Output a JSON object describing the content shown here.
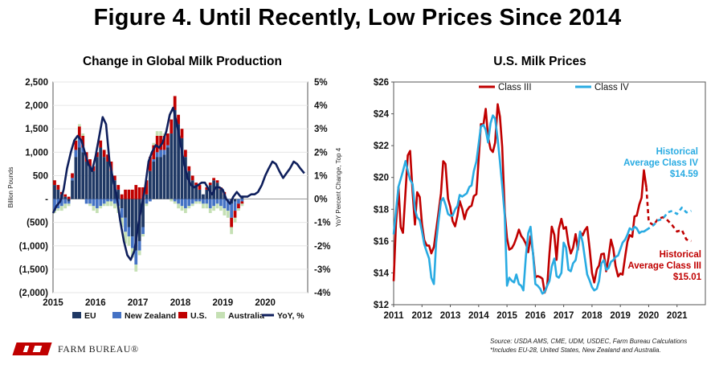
{
  "title": "Figure 4. Until Recently, Low Prices Since 2014",
  "logo_text": "FARM BUREAU®",
  "footer": {
    "source": "Source: USDA AMS, CME, UDM, USDEC, Farm Bureau Calculations",
    "note": "*Includes EU-28, United States, New Zealand and Australia."
  },
  "colors": {
    "eu": "#1f3864",
    "nz": "#4472c4",
    "us": "#c00000",
    "aus": "#c5e0b4",
    "yoy": "#0f1f5c",
    "class3": "#c00000",
    "class4": "#29abe2"
  },
  "chart_data": [
    {
      "type": "bar",
      "title": "Change in Global Milk Production",
      "ylabel": "Billion Pounds",
      "y2label": "YoY Percent Change, Top 4",
      "ylim": [
        -2000,
        2500
      ],
      "y2lim": [
        -4,
        5
      ],
      "x_ticks": [
        "2015",
        "2016",
        "2017",
        "2018",
        "2019",
        "2020"
      ],
      "y_ticks": [
        "2,500",
        "2,000",
        "1,500",
        "1,000",
        "500",
        "-",
        "(500)",
        "(1,000)",
        "(1,500)",
        "(2,000)"
      ],
      "y2_ticks": [
        "5%",
        "4%",
        "3%",
        "2%",
        "1%",
        "0%",
        "-1%",
        "-2%",
        "-3%",
        "-4%"
      ],
      "legend": [
        "EU",
        "New Zealand",
        "U.S.",
        "Australia",
        "YoY, %"
      ],
      "series": [
        {
          "name": "EU",
          "values": [
            300,
            200,
            100,
            50,
            -50,
            400,
            900,
            1100,
            1000,
            800,
            700,
            600,
            900,
            1100,
            900,
            800,
            600,
            400,
            200,
            -200,
            -400,
            -600,
            -800,
            -1100,
            -900,
            -600,
            100,
            600,
            800,
            900,
            900,
            950,
            1100,
            1400,
            1900,
            1600,
            1300,
            900,
            600,
            400,
            300,
            200,
            100,
            200,
            300,
            400,
            350,
            200,
            100,
            0,
            -100,
            -50,
            0,
            50
          ]
        },
        {
          "name": "New Zealand",
          "values": [
            -250,
            -200,
            -150,
            -100,
            -50,
            50,
            150,
            200,
            100,
            -100,
            -100,
            -150,
            -200,
            -150,
            -100,
            -50,
            -50,
            -100,
            -150,
            -200,
            -300,
            -200,
            -250,
            -300,
            -200,
            -150,
            -100,
            -50,
            50,
            100,
            150,
            100,
            50,
            0,
            -50,
            -100,
            -150,
            -200,
            -150,
            -100,
            -50,
            -50,
            -100,
            -100,
            -200,
            -150,
            -100,
            -150,
            -200,
            -250,
            -300,
            -200,
            -100,
            -50
          ]
        },
        {
          "name": "U.S.",
          "values": [
            100,
            100,
            50,
            50,
            50,
            100,
            200,
            250,
            250,
            200,
            150,
            100,
            100,
            150,
            150,
            150,
            200,
            100,
            100,
            100,
            200,
            200,
            200,
            300,
            250,
            250,
            300,
            300,
            300,
            350,
            300,
            300,
            250,
            300,
            300,
            200,
            200,
            150,
            100,
            100,
            50,
            100,
            0,
            50,
            50,
            50,
            50,
            50,
            50,
            0,
            -200,
            -150,
            -100,
            -50
          ]
        },
        {
          "name": "Australia",
          "values": [
            -50,
            -50,
            -100,
            -100,
            -50,
            0,
            50,
            50,
            50,
            0,
            -50,
            -100,
            -100,
            -50,
            -50,
            -100,
            -100,
            -100,
            -150,
            -200,
            -250,
            -200,
            -200,
            -150,
            -100,
            -50,
            -50,
            0,
            50,
            100,
            100,
            50,
            0,
            -50,
            -50,
            -100,
            -100,
            -100,
            -50,
            -50,
            -50,
            -50,
            -100,
            -100,
            -100,
            -100,
            -100,
            -100,
            -150,
            -150,
            -150,
            -100,
            -50,
            -50
          ]
        }
      ],
      "yoy": {
        "name": "YoY, %",
        "x": [
          2015.0,
          2015.08,
          2015.17,
          2015.25,
          2015.33,
          2015.42,
          2015.5,
          2015.58,
          2015.67,
          2015.75,
          2015.83,
          2015.92,
          2016.0,
          2016.08,
          2016.17,
          2016.25,
          2016.33,
          2016.42,
          2016.5,
          2016.58,
          2016.67,
          2016.75,
          2016.83,
          2016.92,
          2017.0,
          2017.08,
          2017.17,
          2017.25,
          2017.33,
          2017.42,
          2017.5,
          2017.58,
          2017.67,
          2017.75,
          2017.83,
          2017.92,
          2018.0,
          2018.08,
          2018.17,
          2018.25,
          2018.33,
          2018.42,
          2018.5,
          2018.58,
          2018.67,
          2018.75,
          2018.83,
          2018.92,
          2019.0,
          2019.08,
          2019.17,
          2019.25,
          2019.33,
          2019.42,
          2019.5,
          2019.58,
          2019.67,
          2019.75,
          2019.83,
          2019.92,
          2020.0,
          2020.08,
          2020.17,
          2020.25,
          2020.33,
          2020.42,
          2020.5,
          2020.58,
          2020.67,
          2020.75,
          2020.83,
          2020.92
        ],
        "values": [
          -0.6,
          -0.3,
          -0.1,
          0.4,
          1.3,
          2.0,
          2.5,
          2.7,
          2.5,
          2.0,
          1.5,
          1.2,
          1.8,
          2.6,
          3.5,
          3.2,
          1.6,
          0.8,
          0.1,
          -0.9,
          -1.8,
          -2.4,
          -2.6,
          -2.2,
          -1.2,
          -0.4,
          0.5,
          1.6,
          2.0,
          2.3,
          2.2,
          2.4,
          2.9,
          3.6,
          3.9,
          3.2,
          2.4,
          1.6,
          0.9,
          0.6,
          0.5,
          0.6,
          0.7,
          0.7,
          0.4,
          0.2,
          0.5,
          0.5,
          0.4,
          0.0,
          -0.2,
          0.1,
          0.3,
          0.1,
          0.1,
          0.1,
          0.2,
          0.2,
          0.3,
          0.6,
          1.0,
          1.3,
          1.6,
          1.5,
          1.2,
          0.9,
          1.1,
          1.3,
          1.6,
          1.5,
          1.3,
          1.1
        ]
      }
    },
    {
      "type": "line",
      "title": "U.S. Milk Prices",
      "ylim": [
        12,
        26
      ],
      "xlim": [
        2011,
        2022
      ],
      "x_ticks": [
        "2011",
        "2012",
        "2013",
        "2014",
        "2015",
        "2016",
        "2017",
        "2018",
        "2019",
        "2020",
        "2021"
      ],
      "y_ticks": [
        "$26",
        "$24",
        "$22",
        "$20",
        "$18",
        "$16",
        "$14",
        "$12"
      ],
      "legend": [
        "Class III",
        "Class IV"
      ],
      "annotations": [
        {
          "lines": [
            "Historical",
            "Average Class IV",
            "$14.59"
          ],
          "color": "#29abe2"
        },
        {
          "lines": [
            "Historical",
            "Average Class III",
            "$15.01"
          ],
          "color": "#c00000"
        }
      ],
      "series": [
        {
          "name": "Class III",
          "x": [
            2011.0,
            2011.08,
            2011.17,
            2011.25,
            2011.33,
            2011.42,
            2011.5,
            2011.58,
            2011.67,
            2011.75,
            2011.83,
            2011.92,
            2012.0,
            2012.08,
            2012.17,
            2012.25,
            2012.33,
            2012.42,
            2012.5,
            2012.58,
            2012.67,
            2012.75,
            2012.83,
            2012.92,
            2013.0,
            2013.08,
            2013.17,
            2013.25,
            2013.33,
            2013.42,
            2013.5,
            2013.58,
            2013.67,
            2013.75,
            2013.83,
            2013.92,
            2014.0,
            2014.08,
            2014.17,
            2014.25,
            2014.33,
            2014.42,
            2014.5,
            2014.58,
            2014.67,
            2014.75,
            2014.83,
            2014.92,
            2015.0,
            2015.08,
            2015.17,
            2015.25,
            2015.33,
            2015.42,
            2015.5,
            2015.58,
            2015.67,
            2015.75,
            2015.83,
            2015.92,
            2016.0,
            2016.08,
            2016.17,
            2016.25,
            2016.33,
            2016.42,
            2016.5,
            2016.58,
            2016.67,
            2016.75,
            2016.83,
            2016.92,
            2017.0,
            2017.08,
            2017.17,
            2017.25,
            2017.33,
            2017.42,
            2017.5,
            2017.58,
            2017.67,
            2017.75,
            2017.83,
            2017.92,
            2018.0,
            2018.08,
            2018.17,
            2018.25,
            2018.33,
            2018.42,
            2018.5,
            2018.58,
            2018.67,
            2018.75,
            2018.83,
            2018.92,
            2019.0,
            2019.08,
            2019.17,
            2019.25,
            2019.33,
            2019.42,
            2019.5,
            2019.58,
            2019.67,
            2019.75,
            2019.83,
            2019.92
          ],
          "values": [
            13.48,
            17.0,
            19.4,
            16.87,
            16.52,
            19.11,
            21.39,
            21.67,
            19.07,
            17.04,
            19.07,
            18.77,
            17.05,
            16.06,
            15.72,
            15.72,
            15.23,
            15.63,
            16.68,
            17.73,
            19.0,
            21.02,
            20.85,
            18.66,
            18.14,
            17.25,
            16.93,
            17.59,
            18.52,
            18.02,
            17.38,
            17.91,
            18.14,
            18.22,
            18.83,
            18.95,
            21.15,
            23.35,
            23.33,
            24.31,
            22.57,
            21.78,
            21.6,
            22.19,
            24.6,
            23.82,
            21.94,
            17.82,
            16.18,
            15.46,
            15.56,
            15.81,
            16.19,
            16.72,
            16.33,
            16.14,
            15.82,
            15.3,
            16.3,
            15.25,
            13.72,
            13.8,
            13.74,
            13.63,
            12.76,
            13.22,
            15.24,
            16.91,
            16.39,
            14.82,
            16.76,
            17.4,
            16.77,
            16.88,
            15.81,
            15.22,
            15.57,
            16.44,
            15.45,
            16.57,
            16.36,
            16.69,
            16.88,
            15.44,
            14.0,
            13.4,
            14.22,
            14.47,
            15.18,
            15.21,
            14.1,
            14.95,
            16.09,
            15.53,
            14.44,
            13.78,
            13.96,
            13.89,
            15.04,
            15.96,
            16.38,
            16.27,
            17.55,
            17.6,
            18.31,
            18.72,
            20.45,
            19.37
          ]
        },
        {
          "name": "Class III projection",
          "x": [
            2019.92,
            2020.0,
            2020.17,
            2020.33,
            2020.5,
            2020.67,
            2020.83,
            2021.0,
            2021.17,
            2021.33,
            2021.5
          ],
          "values": [
            19.37,
            17.2,
            17.0,
            17.4,
            17.5,
            17.3,
            17.0,
            16.6,
            16.7,
            16.1,
            16.0
          ]
        },
        {
          "name": "Class IV",
          "x": [
            2011.0,
            2011.08,
            2011.17,
            2011.25,
            2011.33,
            2011.42,
            2011.5,
            2011.58,
            2011.67,
            2011.75,
            2011.83,
            2011.92,
            2012.0,
            2012.08,
            2012.17,
            2012.25,
            2012.33,
            2012.42,
            2012.5,
            2012.58,
            2012.67,
            2012.75,
            2012.83,
            2012.92,
            2013.0,
            2013.08,
            2013.17,
            2013.25,
            2013.33,
            2013.42,
            2013.5,
            2013.58,
            2013.67,
            2013.75,
            2013.83,
            2013.92,
            2014.0,
            2014.08,
            2014.17,
            2014.25,
            2014.33,
            2014.42,
            2014.5,
            2014.58,
            2014.67,
            2014.75,
            2014.83,
            2014.92,
            2015.0,
            2015.08,
            2015.17,
            2015.25,
            2015.33,
            2015.42,
            2015.5,
            2015.58,
            2015.67,
            2015.75,
            2015.83,
            2015.92,
            2016.0,
            2016.08,
            2016.17,
            2016.25,
            2016.33,
            2016.42,
            2016.5,
            2016.58,
            2016.67,
            2016.75,
            2016.83,
            2016.92,
            2017.0,
            2017.08,
            2017.17,
            2017.25,
            2017.33,
            2017.42,
            2017.5,
            2017.58,
            2017.67,
            2017.75,
            2017.83,
            2017.92,
            2018.0,
            2018.08,
            2018.17,
            2018.25,
            2018.33,
            2018.42,
            2018.5,
            2018.58,
            2018.67,
            2018.75,
            2018.83,
            2018.92,
            2019.0,
            2019.08,
            2019.17,
            2019.25,
            2019.33,
            2019.42,
            2019.5,
            2019.58,
            2019.67,
            2019.75,
            2019.83,
            2019.92
          ],
          "values": [
            16.42,
            17.83,
            19.41,
            19.9,
            20.4,
            21.03,
            20.42,
            19.86,
            19.58,
            18.0,
            17.5,
            17.3,
            16.6,
            15.8,
            15.3,
            14.9,
            13.7,
            13.3,
            15.9,
            17.2,
            18.5,
            18.7,
            18.3,
            17.7,
            17.6,
            17.6,
            18.0,
            18.2,
            18.9,
            18.8,
            18.9,
            19.0,
            19.4,
            19.5,
            20.4,
            21.0,
            22.1,
            23.2,
            23.3,
            23.0,
            22.2,
            23.4,
            23.9,
            23.7,
            22.4,
            21.0,
            19.5,
            17.6,
            13.2,
            13.7,
            13.5,
            13.4,
            13.9,
            13.3,
            13.2,
            12.9,
            15.1,
            16.5,
            16.9,
            15.2,
            13.3,
            13.2,
            13.0,
            12.7,
            12.8,
            13.2,
            13.5,
            14.4,
            14.9,
            13.8,
            13.7,
            14.0,
            15.9,
            15.6,
            14.2,
            14.1,
            14.6,
            14.8,
            15.6,
            16.6,
            15.9,
            14.9,
            13.9,
            13.5,
            13.1,
            12.9,
            13.0,
            13.5,
            14.6,
            14.8,
            14.2,
            14.3,
            14.7,
            14.8,
            15.0,
            15.1,
            15.5,
            15.9,
            16.1,
            16.4,
            16.8,
            16.7,
            16.9,
            16.8,
            16.5,
            16.6,
            16.6,
            16.7
          ]
        },
        {
          "name": "Class IV projection",
          "x": [
            2019.92,
            2020.17,
            2020.33,
            2020.5,
            2020.67,
            2020.83,
            2021.0,
            2021.17,
            2021.33,
            2021.5
          ],
          "values": [
            16.7,
            17.0,
            17.3,
            17.4,
            17.8,
            17.9,
            17.7,
            18.1,
            17.8,
            17.9
          ]
        }
      ]
    }
  ]
}
